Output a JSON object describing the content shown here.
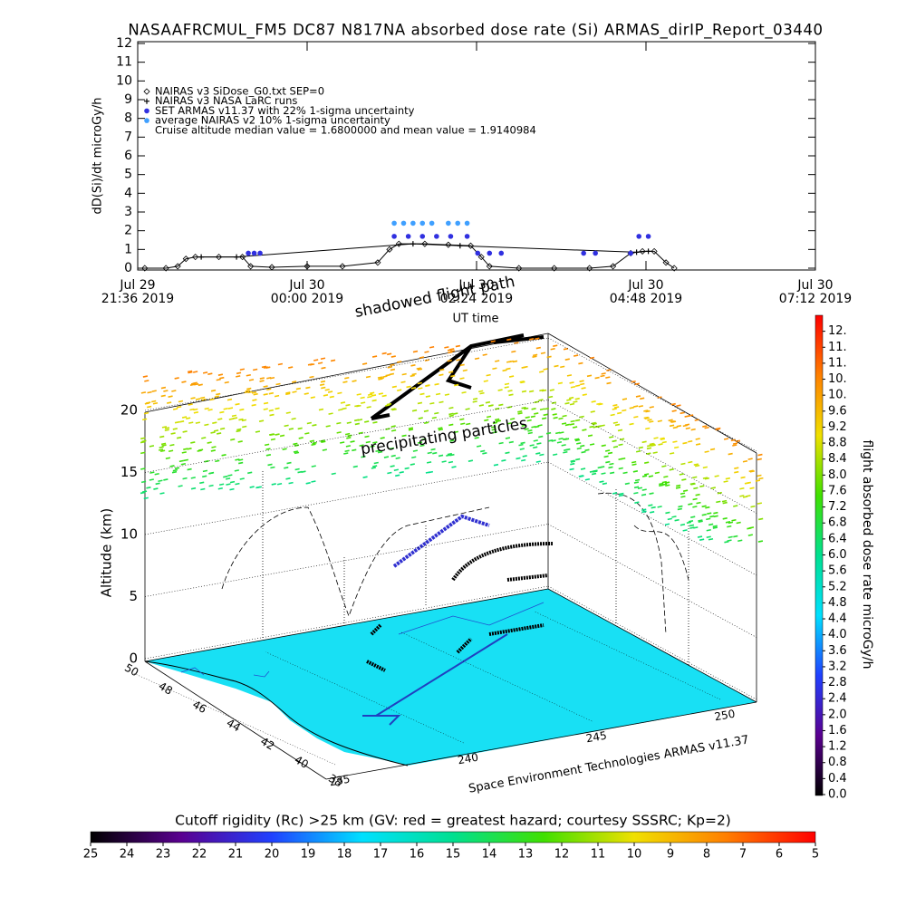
{
  "chart_data": [
    {
      "type": "line",
      "title": "NASAAFRCMUL_FM5 DC87 N817NA absorbed dose rate (Si) ARMAS_dirIP_Report_03440",
      "ylabel": "dD(Si)/dt microGy/h",
      "xlabel": "UT time",
      "xlim": [
        "2019-07-29T21:36",
        "2019-07-30T07:12"
      ],
      "xticks": [
        {
          "value": "2019-07-29T21:36",
          "label": [
            "Jul 29",
            "21:36 2019"
          ]
        },
        {
          "value": "2019-07-30T00:00",
          "label": [
            "Jul 30",
            "00:00 2019"
          ]
        },
        {
          "value": "2019-07-30T02:24",
          "label": [
            "Jul 30",
            "02:24 2019"
          ]
        },
        {
          "value": "2019-07-30T04:48",
          "label": [
            "Jul 30",
            "04:48 2019"
          ]
        },
        {
          "value": "2019-07-30T07:12",
          "label": [
            "Jul 30",
            "07:12 2019"
          ]
        }
      ],
      "ylim": [
        0,
        12
      ],
      "yticks": [
        0,
        1,
        2,
        3,
        4,
        5,
        6,
        7,
        8,
        9,
        10,
        11,
        12
      ],
      "series": [
        {
          "name": "NAIRAS v3 SiDose_G0.txt SEP=0",
          "color": "#000000",
          "marker": "diamond",
          "x": [
            "2019-07-29T21:42",
            "2019-07-29T22:00",
            "2019-07-29T22:10",
            "2019-07-29T22:17",
            "2019-07-29T22:25",
            "2019-07-29T22:45",
            "2019-07-29T23:05",
            "2019-07-29T23:12",
            "2019-07-29T23:30",
            "2019-07-30T00:00",
            "2019-07-30T00:30",
            "2019-07-30T01:00",
            "2019-07-30T01:10",
            "2019-07-30T01:18",
            "2019-07-30T01:40",
            "2019-07-30T02:00",
            "2019-07-30T02:19",
            "2019-07-30T02:28",
            "2019-07-30T02:35",
            "2019-07-30T03:00",
            "2019-07-30T03:30",
            "2019-07-30T04:00",
            "2019-07-30T04:20",
            "2019-07-30T04:35",
            "2019-07-30T04:45",
            "2019-07-30T04:55",
            "2019-07-30T05:05",
            "2019-07-30T05:12"
          ],
          "values": [
            0,
            0,
            0.1,
            0.5,
            0.6,
            0.6,
            0.6,
            0.1,
            0.05,
            0.1,
            0.1,
            0.3,
            1.0,
            1.3,
            1.3,
            1.25,
            1.2,
            0.6,
            0.1,
            0,
            0,
            0,
            0.1,
            0.8,
            0.9,
            0.9,
            0.3,
            0
          ]
        },
        {
          "name": "NAIRAS v3 NASA LaRC runs",
          "color": "#000000",
          "marker": "plus",
          "x": [
            "2019-07-29T22:30",
            "2019-07-29T23:00",
            "2019-07-30T01:30",
            "2019-07-30T02:10",
            "2019-07-30T04:40",
            "2019-07-30T04:50"
          ],
          "values": [
            0.6,
            0.6,
            1.3,
            1.2,
            0.85,
            0.9
          ]
        },
        {
          "name": "SET ARMAS v11.37 with 22% 1-sigma uncertainty",
          "color": "#3030e0",
          "marker": "dot",
          "x": [
            "2019-07-29T23:10",
            "2019-07-29T23:15",
            "2019-07-29T23:20",
            "2019-07-30T01:14",
            "2019-07-30T01:26",
            "2019-07-30T01:38",
            "2019-07-30T01:50",
            "2019-07-30T02:02",
            "2019-07-30T02:16",
            "2019-07-30T02:25",
            "2019-07-30T02:35",
            "2019-07-30T02:45",
            "2019-07-30T03:55",
            "2019-07-30T04:05",
            "2019-07-30T04:35",
            "2019-07-30T04:42",
            "2019-07-30T04:50"
          ],
          "values": [
            0.8,
            0.8,
            0.8,
            1.7,
            1.7,
            1.7,
            1.7,
            1.7,
            1.7,
            0.8,
            0.8,
            0.8,
            0.8,
            0.8,
            0.8,
            1.7,
            1.7
          ]
        },
        {
          "name": "average NAIRAS v2 10% 1-sigma uncertainty",
          "color": "#40a0ff",
          "marker": "dot",
          "x": [
            "2019-07-30T01:14",
            "2019-07-30T01:22",
            "2019-07-30T01:30",
            "2019-07-30T01:38",
            "2019-07-30T01:46",
            "2019-07-30T02:00",
            "2019-07-30T02:08",
            "2019-07-30T02:16"
          ],
          "values": [
            2.4,
            2.4,
            2.4,
            2.4,
            2.4,
            2.4,
            2.4,
            2.4
          ]
        }
      ],
      "annotation": "Cruise altitude median value = 1.6800000 and mean value = 1.9140984"
    },
    {
      "type": "surface3d",
      "annotations": [
        "shadowed flight path",
        "precipitating particles"
      ],
      "zlabel": "Altitude (km)",
      "zlim": [
        0,
        20
      ],
      "zticks": [
        0,
        5,
        10,
        15,
        20
      ],
      "yticks": [
        38,
        40,
        42,
        44,
        46,
        48,
        50
      ],
      "xticks": [
        235,
        240,
        245,
        250
      ],
      "credit": "Space Environment Technologies ARMAS v11.37"
    },
    {
      "type": "colorbar",
      "label": "flight absorbed dose rate microGy/h",
      "ylim": [
        0,
        12
      ],
      "colormap": [
        "#000000",
        "#5a0090",
        "#2040ff",
        "#00e0ff",
        "#00e090",
        "#40e000",
        "#f0e000",
        "#ff8000",
        "#ff0000"
      ],
      "yticks": [
        {
          "value": 0,
          "label": "0.0"
        },
        0.4,
        0.8,
        1.2,
        1.6,
        {
          "value": 2,
          "label": "2.0"
        },
        2.4,
        2.8,
        3.2,
        3.6,
        {
          "value": 4,
          "label": "4.0"
        },
        4.4,
        4.8,
        5.2,
        5.6,
        {
          "value": 6,
          "label": "6.0"
        },
        6.4,
        6.8,
        7.2,
        7.6,
        {
          "value": 8,
          "label": "8.0"
        },
        8.4,
        8.8,
        9.2,
        9.6,
        {
          "value": 10,
          "label": "10."
        },
        {
          "value": 10.4,
          "label": "10."
        },
        {
          "value": 10.8,
          "label": "11."
        },
        {
          "value": 11.2,
          "label": "11."
        },
        {
          "value": 11.6,
          "label": "12."
        }
      ]
    },
    {
      "type": "colorbar",
      "title": "Cutoff rigidity (Rc) >25 km (GV: red = greatest hazard; courtesy SSSRC; Kp=2)",
      "xlim": [
        25,
        5
      ],
      "colormap": [
        "#000000",
        "#5a0090",
        "#2040ff",
        "#00e0ff",
        "#00e090",
        "#40e000",
        "#f0e000",
        "#ff8000",
        "#ff0000"
      ],
      "xticks": [
        25,
        24,
        23,
        22,
        21,
        20,
        19,
        18,
        17,
        16,
        15,
        14,
        13,
        12,
        11,
        10,
        9,
        8,
        7,
        6,
        5
      ]
    }
  ]
}
